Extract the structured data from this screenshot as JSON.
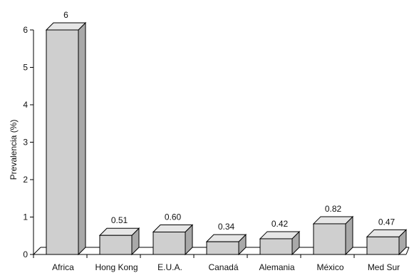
{
  "chart_data": {
    "type": "bar",
    "style": "3d",
    "categories": [
      "Africa",
      "Hong Kong",
      "E.U.A.",
      "Canadá",
      "Alemania",
      "México",
      "Med Sur"
    ],
    "values": [
      6,
      0.51,
      0.6,
      0.34,
      0.42,
      0.82,
      0.47
    ],
    "value_labels": [
      "6",
      "0.51",
      "0.60",
      "0.34",
      "0.42",
      "0.82",
      "0.47"
    ],
    "ylabel": "Prevalencia (%)",
    "ylim": [
      0,
      6
    ],
    "yticks": [
      "0",
      "1",
      "2",
      "3",
      "4",
      "5",
      "6"
    ],
    "grid": false,
    "legend": "none",
    "colors": {
      "bar_front": "#cfcfcf",
      "bar_top": "#e6e6e6",
      "bar_side": "#a9a9a9",
      "stroke": "#000000"
    }
  }
}
